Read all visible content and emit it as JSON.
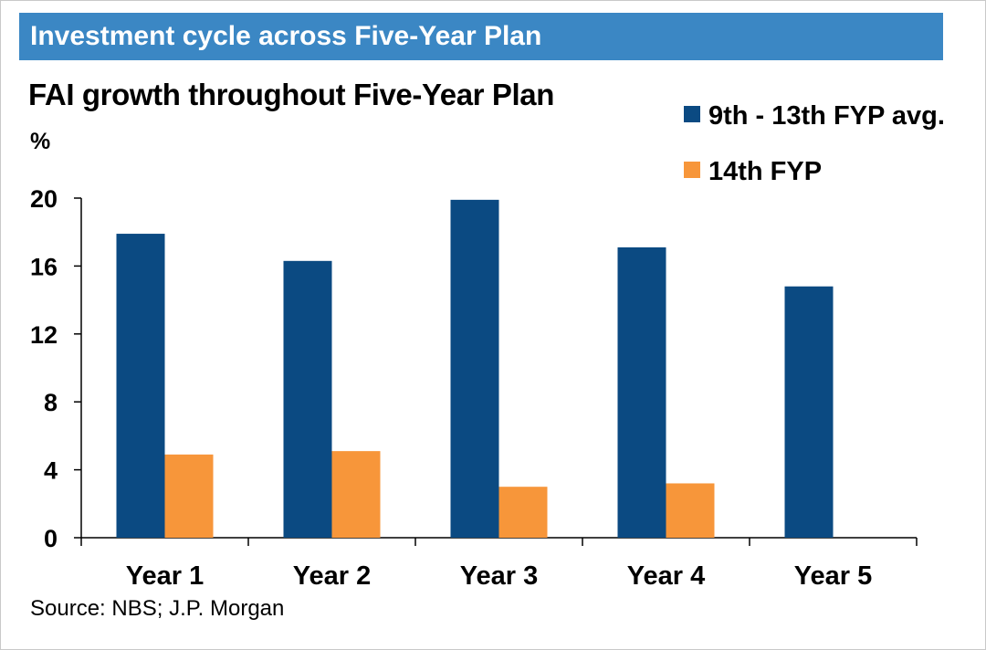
{
  "banner": {
    "title": "Investment cycle across Five-Year Plan"
  },
  "source": "Source: NBS; J.P. Morgan",
  "chart_data": {
    "type": "bar",
    "title": "FAI growth throughout Five-Year Plan",
    "ylabel": "%",
    "xlabel": "",
    "ylim": [
      0,
      20
    ],
    "yticks": [
      0,
      4,
      8,
      12,
      16,
      20
    ],
    "categories": [
      "Year 1",
      "Year 2",
      "Year 3",
      "Year 4",
      "Year 5"
    ],
    "series": [
      {
        "name": "9th - 13th FYP avg.",
        "color": "#0b4a82",
        "values": [
          17.9,
          16.3,
          19.9,
          17.1,
          14.8
        ]
      },
      {
        "name": "14th FYP",
        "color": "#f7963a",
        "values": [
          4.9,
          5.1,
          3.0,
          3.2,
          null
        ]
      }
    ],
    "legend_position": "top-right",
    "grid": false
  }
}
